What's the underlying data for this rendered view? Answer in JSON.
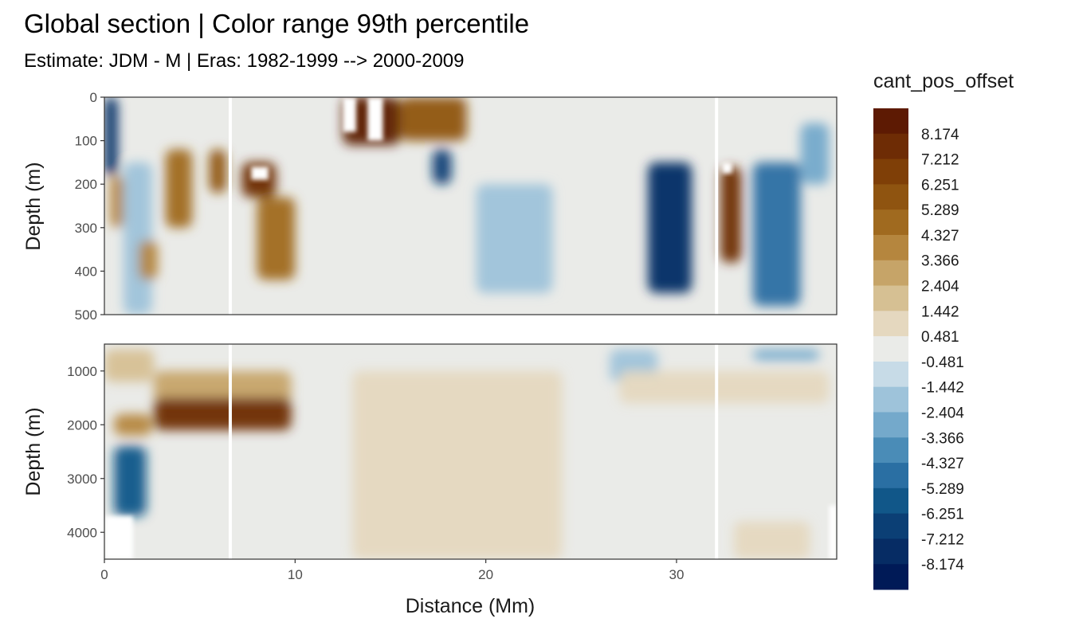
{
  "chart_data": {
    "type": "heatmap",
    "title": "Global section | Color range 99th percentile",
    "subtitle": "Estimate: JDM - M | Eras: 1982-1999 --> 2000-2009",
    "xlabel": "Distance (Mm)",
    "ylabel": "Depth (m)",
    "xlim": [
      0,
      38.4
    ],
    "x_ticks": [
      "0",
      "10",
      "20",
      "30"
    ],
    "x_tick_values": [
      0,
      10,
      20,
      30
    ],
    "panels": [
      {
        "name": "upper",
        "ylim": [
          0,
          500
        ],
        "y_reversed": true,
        "y_ticks": [
          "0",
          "100",
          "200",
          "300",
          "400",
          "500"
        ],
        "y_tick_values": [
          0,
          100,
          200,
          300,
          400,
          500
        ],
        "features": [
          {
            "x": [
              0.0,
              0.7
            ],
            "y": [
              0,
              180
            ],
            "level": -8
          },
          {
            "x": [
              0.3,
              1.0
            ],
            "y": [
              180,
              300
            ],
            "level": 4
          },
          {
            "x": [
              1.0,
              2.5
            ],
            "y": [
              150,
              500
            ],
            "level": -2
          },
          {
            "x": [
              1.8,
              2.8
            ],
            "y": [
              330,
              420
            ],
            "level": 4
          },
          {
            "x": [
              3.2,
              4.6
            ],
            "y": [
              120,
              300
            ],
            "level": 5
          },
          {
            "x": [
              5.5,
              6.4
            ],
            "y": [
              120,
              220
            ],
            "level": 6
          },
          {
            "x": [
              7.2,
              9.0
            ],
            "y": [
              150,
              230
            ],
            "level": 8
          },
          {
            "x": [
              8.0,
              10.0
            ],
            "y": [
              230,
              420
            ],
            "level": 5
          },
          {
            "x": [
              12.5,
              15.5
            ],
            "y": [
              0,
              110
            ],
            "level": 9
          },
          {
            "x": [
              15.5,
              19.0
            ],
            "y": [
              0,
              100
            ],
            "level": 6
          },
          {
            "x": [
              17.2,
              18.2
            ],
            "y": [
              120,
              200
            ],
            "level": -7
          },
          {
            "x": [
              19.5,
              23.5
            ],
            "y": [
              200,
              450
            ],
            "level": -2
          },
          {
            "x": [
              28.5,
              30.8
            ],
            "y": [
              150,
              450
            ],
            "level": -8
          },
          {
            "x": [
              32.3,
              33.4
            ],
            "y": [
              160,
              380
            ],
            "level": 8
          },
          {
            "x": [
              34.0,
              36.5
            ],
            "y": [
              150,
              480
            ],
            "level": -5
          },
          {
            "x": [
              36.5,
              38.0
            ],
            "y": [
              60,
              200
            ],
            "level": -3
          }
        ],
        "missing": [
          {
            "x": [
              12.5,
              13.2
            ],
            "y": [
              0,
              80
            ]
          },
          {
            "x": [
              13.8,
              14.6
            ],
            "y": [
              0,
              100
            ]
          },
          {
            "x": [
              7.7,
              8.6
            ],
            "y": [
              160,
              190
            ]
          },
          {
            "x": [
              32.4,
              32.9
            ],
            "y": [
              150,
              175
            ]
          }
        ]
      },
      {
        "name": "lower",
        "ylim": [
          500,
          4500
        ],
        "y_reversed": true,
        "y_ticks": [
          "1000",
          "2000",
          "3000",
          "4000"
        ],
        "y_tick_values": [
          1000,
          2000,
          3000,
          4000
        ],
        "features": [
          {
            "x": [
              0.0,
              2.6
            ],
            "y": [
              600,
              1200
            ],
            "level": 2
          },
          {
            "x": [
              2.6,
              9.8
            ],
            "y": [
              1000,
              1600
            ],
            "level": 3
          },
          {
            "x": [
              2.6,
              9.8
            ],
            "y": [
              1500,
              2100
            ],
            "level": 8
          },
          {
            "x": [
              0.5,
              2.5
            ],
            "y": [
              1800,
              2200
            ],
            "level": 4
          },
          {
            "x": [
              0.5,
              2.2
            ],
            "y": [
              2400,
              3700
            ],
            "level": -6
          },
          {
            "x": [
              13.0,
              24.0
            ],
            "y": [
              1000,
              4500
            ],
            "level": 1
          },
          {
            "x": [
              26.5,
              29.0
            ],
            "y": [
              600,
              1200
            ],
            "level": -2
          },
          {
            "x": [
              27.0,
              38.0
            ],
            "y": [
              1000,
              1600
            ],
            "level": 1
          },
          {
            "x": [
              34.0,
              37.5
            ],
            "y": [
              600,
              800
            ],
            "level": -3
          },
          {
            "x": [
              33.0,
              37.0
            ],
            "y": [
              3800,
              4500
            ],
            "level": 1
          }
        ],
        "missing": [
          {
            "x": [
              0.0,
              1.5
            ],
            "y": [
              3700,
              4500
            ]
          },
          {
            "x": [
              38.0,
              38.4
            ],
            "y": [
              3500,
              4500
            ]
          }
        ]
      }
    ],
    "gaps_x": [
      6.6,
      32.1
    ],
    "legend": {
      "title": "cant_pos_offset",
      "labels": [
        "8.174",
        "7.212",
        "6.251",
        "5.289",
        "4.327",
        "3.366",
        "2.404",
        "1.442",
        "0.481",
        "-0.481",
        "-1.442",
        "-2.404",
        "-3.366",
        "-4.327",
        "-5.289",
        "-6.251",
        "-7.212",
        "-8.174"
      ],
      "colors": [
        "#5d1a03",
        "#6e2c05",
        "#7f3f07",
        "#8f5410",
        "#a06a1f",
        "#b5863e",
        "#c6a468",
        "#d6c093",
        "#e5d8bf",
        "#eaebe8",
        "#c7dbe7",
        "#9ec3da",
        "#74a9cb",
        "#4a8cb7",
        "#2a6fa3",
        "#115789",
        "#0b3f75",
        "#062c64",
        "#001a57"
      ]
    }
  }
}
